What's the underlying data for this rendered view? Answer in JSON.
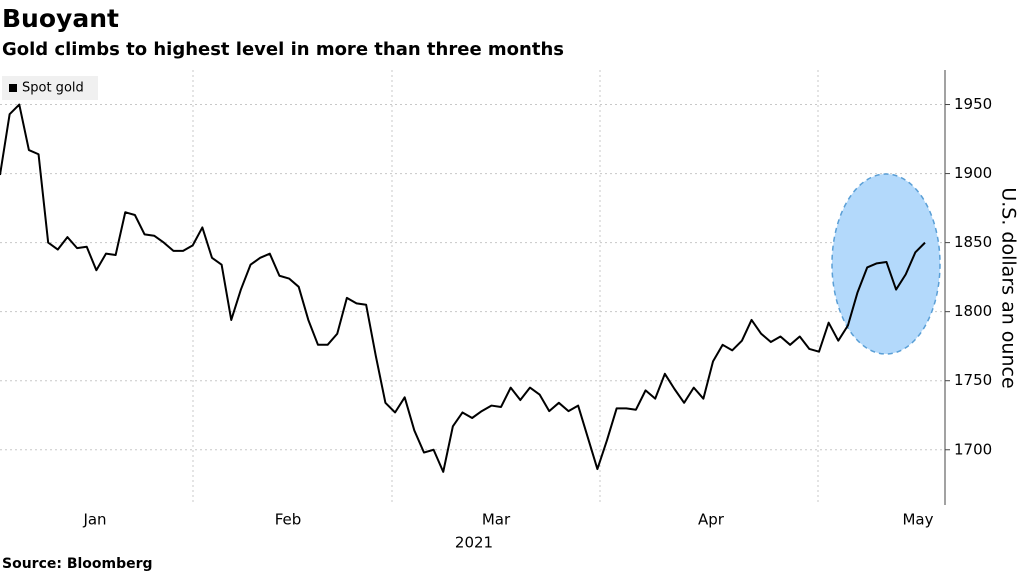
{
  "chart_data": {
    "type": "line",
    "title": "Buoyant",
    "subtitle": "Gold climbs to highest level in more than three months",
    "source": "Source: Bloomberg",
    "y_axis_label": "U.S. dollars an ounce",
    "x_month_labels": [
      "Jan",
      "Feb",
      "Mar",
      "Apr",
      "May"
    ],
    "x_year_label": "2021",
    "series": [
      {
        "name": "Spot gold",
        "color": "#000000",
        "values": [
          1899,
          1943,
          1950,
          1917,
          1914,
          1850,
          1845,
          1854,
          1846,
          1847,
          1830,
          1842,
          1841,
          1872,
          1870,
          1856,
          1855,
          1850,
          1844,
          1844,
          1848,
          1861,
          1839,
          1834,
          1794,
          1816,
          1834,
          1839,
          1842,
          1826,
          1824,
          1818,
          1794,
          1776,
          1776,
          1784,
          1810,
          1806,
          1805,
          1768,
          1734,
          1727,
          1738,
          1714,
          1698,
          1700,
          1684,
          1717,
          1727,
          1723,
          1728,
          1732,
          1731,
          1745,
          1736,
          1745,
          1740,
          1728,
          1734,
          1728,
          1732,
          1709,
          1686,
          1707,
          1730,
          1730,
          1729,
          1743,
          1737,
          1755,
          1744,
          1734,
          1745,
          1737,
          1764,
          1776,
          1772,
          1779,
          1794,
          1784,
          1778,
          1782,
          1776,
          1782,
          1773,
          1771,
          1792,
          1779,
          1790,
          1814,
          1832,
          1835,
          1836,
          1816,
          1827,
          1843,
          1850
        ]
      }
    ],
    "ylim": [
      1660,
      1975
    ],
    "yticks": [
      1700,
      1750,
      1800,
      1850,
      1900,
      1950
    ],
    "grid": true
  }
}
